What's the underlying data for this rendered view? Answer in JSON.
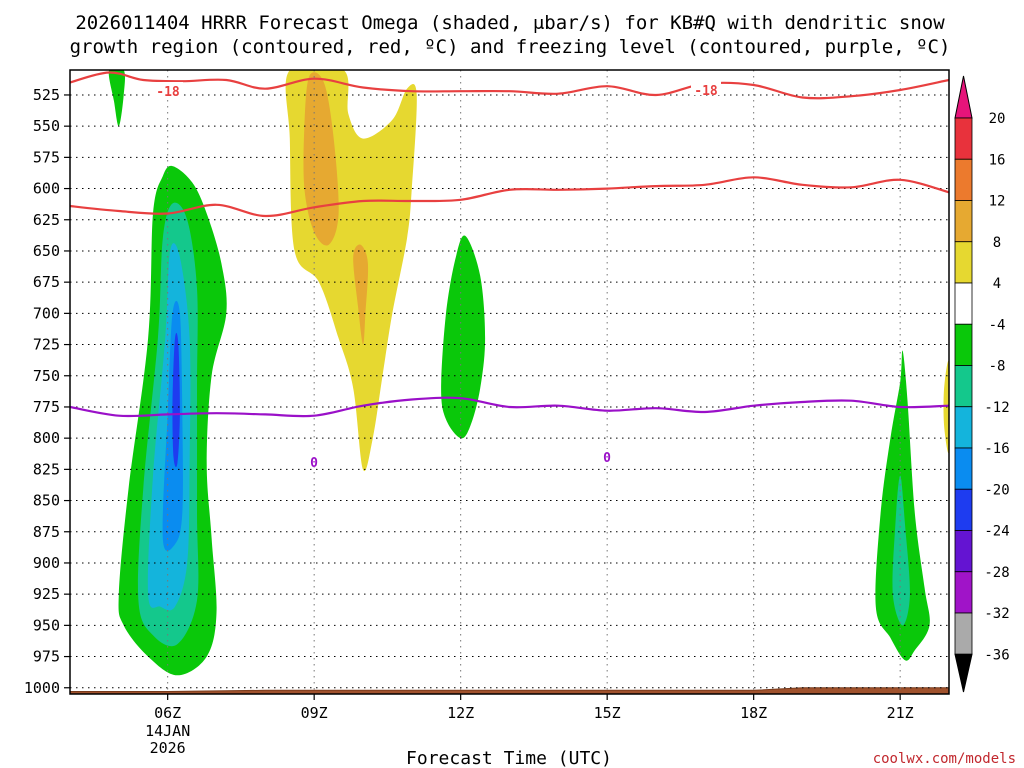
{
  "chart_data": {
    "type": "contour",
    "title_lines": [
      "2026011404 HRRR Forecast Omega (shaded, μbar/s) for KB#Q with dendritic snow",
      "growth region (contoured, red, ºC) and freezing level (contoured, purple, ºC)"
    ],
    "xlabel": "Forecast Time (UTC)",
    "x_ticks": [
      {
        "hour": 6,
        "label": "06Z",
        "sub": [
          "14JAN",
          "2026"
        ]
      },
      {
        "hour": 9,
        "label": "09Z",
        "sub": []
      },
      {
        "hour": 12,
        "label": "12Z",
        "sub": []
      },
      {
        "hour": 15,
        "label": "15Z",
        "sub": []
      },
      {
        "hour": 18,
        "label": "18Z",
        "sub": []
      },
      {
        "hour": 21,
        "label": "21Z",
        "sub": []
      }
    ],
    "x_range_hours": [
      4,
      22
    ],
    "y_range_mb": [
      505,
      1005
    ],
    "y_ticks": [
      525,
      550,
      575,
      600,
      625,
      650,
      675,
      700,
      725,
      750,
      775,
      800,
      825,
      850,
      875,
      900,
      925,
      950,
      975,
      1000
    ],
    "colorbar": {
      "labels": [
        "20",
        "16",
        "12",
        "8",
        "4",
        "-4",
        "-8",
        "-12",
        "-16",
        "-20",
        "-24",
        "-28",
        "-32",
        "-36"
      ],
      "bins": [
        {
          "range": "16 to 20",
          "color": "#e8323c"
        },
        {
          "range": "12 to 16",
          "color": "#ec7a2d"
        },
        {
          "range": "8 to 12",
          "color": "#e6a931"
        },
        {
          "range": "4 to 8",
          "color": "#e6d830"
        },
        {
          "range": "-4 to 4",
          "color": "#ffffff"
        },
        {
          "range": "-8 to -4",
          "color": "#0ac80a"
        },
        {
          "range": "-12 to -8",
          "color": "#14c88c"
        },
        {
          "range": "-16 to -12",
          "color": "#14b4dc"
        },
        {
          "range": "-20 to -16",
          "color": "#0a8cf0"
        },
        {
          "range": "-24 to -20",
          "color": "#1e3cf0"
        },
        {
          "range": "-28 to -24",
          "color": "#6414d2"
        },
        {
          "range": "-32 to -28",
          "color": "#a014c8"
        },
        {
          "range": "-36 to -32",
          "color": "#aaaaaa"
        }
      ],
      "over_color": "#e6147a",
      "under_color": "#000000"
    },
    "contour_labels": {
      "dgz_top": "-18",
      "dgz_top_2": "-18",
      "freezing": "0",
      "freezing_2": "0"
    },
    "dgz_top_mb": [
      [
        4.0,
        515
      ],
      [
        4.8,
        507
      ],
      [
        5.5,
        513
      ],
      [
        6.3,
        514
      ],
      [
        7.2,
        513
      ],
      [
        8.0,
        520
      ],
      [
        9.0,
        512
      ],
      [
        10.0,
        519
      ],
      [
        11.0,
        522
      ],
      [
        12.0,
        522
      ],
      [
        13.0,
        522
      ],
      [
        14.0,
        524
      ],
      [
        15.0,
        518
      ],
      [
        16.0,
        525
      ],
      [
        17.0,
        516
      ],
      [
        18.0,
        517
      ],
      [
        19.0,
        527
      ],
      [
        20.0,
        526
      ],
      [
        21.0,
        521
      ],
      [
        22.0,
        513
      ]
    ],
    "dgz_bottom_mb": [
      [
        4.0,
        614
      ],
      [
        5.0,
        618
      ],
      [
        6.0,
        620
      ],
      [
        7.0,
        613
      ],
      [
        8.0,
        622
      ],
      [
        9.0,
        615
      ],
      [
        10.0,
        610
      ],
      [
        11.0,
        610
      ],
      [
        12.0,
        609
      ],
      [
        13.0,
        601
      ],
      [
        14.0,
        601
      ],
      [
        15.0,
        600
      ],
      [
        16.0,
        598
      ],
      [
        17.0,
        597
      ],
      [
        18.0,
        591
      ],
      [
        19.0,
        597
      ],
      [
        20.0,
        599
      ],
      [
        21.0,
        593
      ],
      [
        22.0,
        603
      ]
    ],
    "freezing_level_mb": [
      [
        4.0,
        775
      ],
      [
        5.0,
        782
      ],
      [
        6.0,
        781
      ],
      [
        7.0,
        780
      ],
      [
        8.0,
        781
      ],
      [
        9.0,
        782
      ],
      [
        10.0,
        774
      ],
      [
        11.0,
        769
      ],
      [
        12.0,
        768
      ],
      [
        13.0,
        775
      ],
      [
        14.0,
        774
      ],
      [
        15.0,
        778
      ],
      [
        16.0,
        776
      ],
      [
        17.0,
        779
      ],
      [
        18.0,
        774
      ],
      [
        19.0,
        771
      ],
      [
        20.0,
        770
      ],
      [
        21.0,
        775
      ],
      [
        22.0,
        774
      ]
    ],
    "omega_regions": [
      {
        "name": "upward-core-06z",
        "level": "-4",
        "points": [
          [
            5.0,
            925
          ],
          [
            5.2,
            840
          ],
          [
            5.6,
            720
          ],
          [
            5.7,
            620
          ],
          [
            5.9,
            590
          ],
          [
            6.1,
            582
          ],
          [
            6.5,
            595
          ],
          [
            6.8,
            620
          ],
          [
            7.1,
            660
          ],
          [
            7.2,
            700
          ],
          [
            6.9,
            750
          ],
          [
            6.8,
            820
          ],
          [
            6.9,
            880
          ],
          [
            7.0,
            940
          ],
          [
            6.8,
            975
          ],
          [
            6.2,
            990
          ],
          [
            5.6,
            975
          ],
          [
            5.1,
            950
          ]
        ]
      },
      {
        "name": "upward-core-06z",
        "level": "-8",
        "points": [
          [
            5.4,
            930
          ],
          [
            5.5,
            840
          ],
          [
            5.8,
            720
          ],
          [
            5.9,
            640
          ],
          [
            6.1,
            612
          ],
          [
            6.4,
            625
          ],
          [
            6.6,
            680
          ],
          [
            6.6,
            760
          ],
          [
            6.6,
            860
          ],
          [
            6.6,
            930
          ],
          [
            6.2,
            965
          ],
          [
            5.7,
            958
          ]
        ]
      },
      {
        "name": "upward-core-06z",
        "level": "-12",
        "points": [
          [
            5.6,
            925
          ],
          [
            5.7,
            830
          ],
          [
            5.95,
            720
          ],
          [
            6.05,
            650
          ],
          [
            6.25,
            655
          ],
          [
            6.45,
            720
          ],
          [
            6.45,
            820
          ],
          [
            6.4,
            900
          ],
          [
            6.15,
            935
          ],
          [
            5.85,
            935
          ]
        ]
      },
      {
        "name": "upward-core-06z",
        "level": "-16",
        "points": [
          [
            5.9,
            880
          ],
          [
            6.0,
            780
          ],
          [
            6.1,
            700
          ],
          [
            6.25,
            700
          ],
          [
            6.3,
            780
          ],
          [
            6.3,
            860
          ],
          [
            6.15,
            885
          ]
        ]
      },
      {
        "name": "upward-core-06z",
        "level": "-20",
        "points": [
          [
            6.1,
            770
          ],
          [
            6.15,
            720
          ],
          [
            6.22,
            725
          ],
          [
            6.25,
            780
          ],
          [
            6.2,
            820
          ],
          [
            6.12,
            815
          ]
        ]
      },
      {
        "name": "upward-upper-05z",
        "level": "-4",
        "points": [
          [
            4.8,
            505
          ],
          [
            5.1,
            505
          ],
          [
            5.1,
            525
          ],
          [
            5.0,
            550
          ],
          [
            4.9,
            530
          ]
        ]
      },
      {
        "name": "upward-12z",
        "level": "-4",
        "points": [
          [
            11.6,
            760
          ],
          [
            11.7,
            700
          ],
          [
            11.9,
            655
          ],
          [
            12.1,
            638
          ],
          [
            12.4,
            670
          ],
          [
            12.5,
            720
          ],
          [
            12.4,
            760
          ],
          [
            12.2,
            790
          ],
          [
            12.0,
            800
          ],
          [
            11.7,
            785
          ]
        ]
      },
      {
        "name": "upward-21z",
        "level": "-4",
        "points": [
          [
            20.5,
            935
          ],
          [
            20.6,
            860
          ],
          [
            20.8,
            800
          ],
          [
            21.0,
            755
          ],
          [
            21.05,
            730
          ],
          [
            21.15,
            770
          ],
          [
            21.3,
            860
          ],
          [
            21.5,
            920
          ],
          [
            21.6,
            950
          ],
          [
            21.3,
            970
          ],
          [
            21.1,
            978
          ],
          [
            20.8,
            960
          ]
        ]
      },
      {
        "name": "upward-21z",
        "level": "-8",
        "points": [
          [
            20.85,
            925
          ],
          [
            20.9,
            870
          ],
          [
            21.0,
            830
          ],
          [
            21.1,
            870
          ],
          [
            21.2,
            925
          ],
          [
            21.05,
            950
          ]
        ]
      },
      {
        "name": "downward-09z",
        "level": "4",
        "points": [
          [
            8.5,
            505
          ],
          [
            9.6,
            505
          ],
          [
            9.7,
            540
          ],
          [
            10.0,
            560
          ],
          [
            10.6,
            545
          ],
          [
            10.9,
            520
          ],
          [
            11.1,
            525
          ],
          [
            11.0,
            600
          ],
          [
            10.9,
            640
          ],
          [
            10.6,
            700
          ],
          [
            10.4,
            750
          ],
          [
            10.2,
            800
          ],
          [
            10.0,
            825
          ],
          [
            9.8,
            760
          ],
          [
            9.5,
            720
          ],
          [
            9.1,
            675
          ],
          [
            8.6,
            650
          ],
          [
            8.5,
            560
          ]
        ]
      },
      {
        "name": "downward-09z",
        "level": "8",
        "points": [
          [
            8.8,
            550
          ],
          [
            8.9,
            510
          ],
          [
            9.2,
            515
          ],
          [
            9.4,
            560
          ],
          [
            9.5,
            620
          ],
          [
            9.3,
            645
          ],
          [
            9.0,
            635
          ],
          [
            8.8,
            600
          ]
        ]
      },
      {
        "name": "downward-10z",
        "level": "8",
        "points": [
          [
            9.9,
            695
          ],
          [
            9.8,
            655
          ],
          [
            9.95,
            645
          ],
          [
            10.1,
            660
          ],
          [
            10.05,
            700
          ],
          [
            10.0,
            725
          ]
        ]
      },
      {
        "name": "downward-22z",
        "level": "4",
        "points": [
          [
            21.9,
            760
          ],
          [
            22.0,
            740
          ],
          [
            22.0,
            810
          ],
          [
            21.9,
            790
          ]
        ]
      }
    ],
    "terrain_top_mb": [
      [
        4.0,
        1003
      ],
      [
        6.0,
        1003
      ],
      [
        8.0,
        1002
      ],
      [
        12.0,
        1002
      ],
      [
        18.0,
        1002
      ],
      [
        19.0,
        1000
      ],
      [
        22.0,
        1000
      ]
    ]
  },
  "credit": "coolwx.com/models"
}
